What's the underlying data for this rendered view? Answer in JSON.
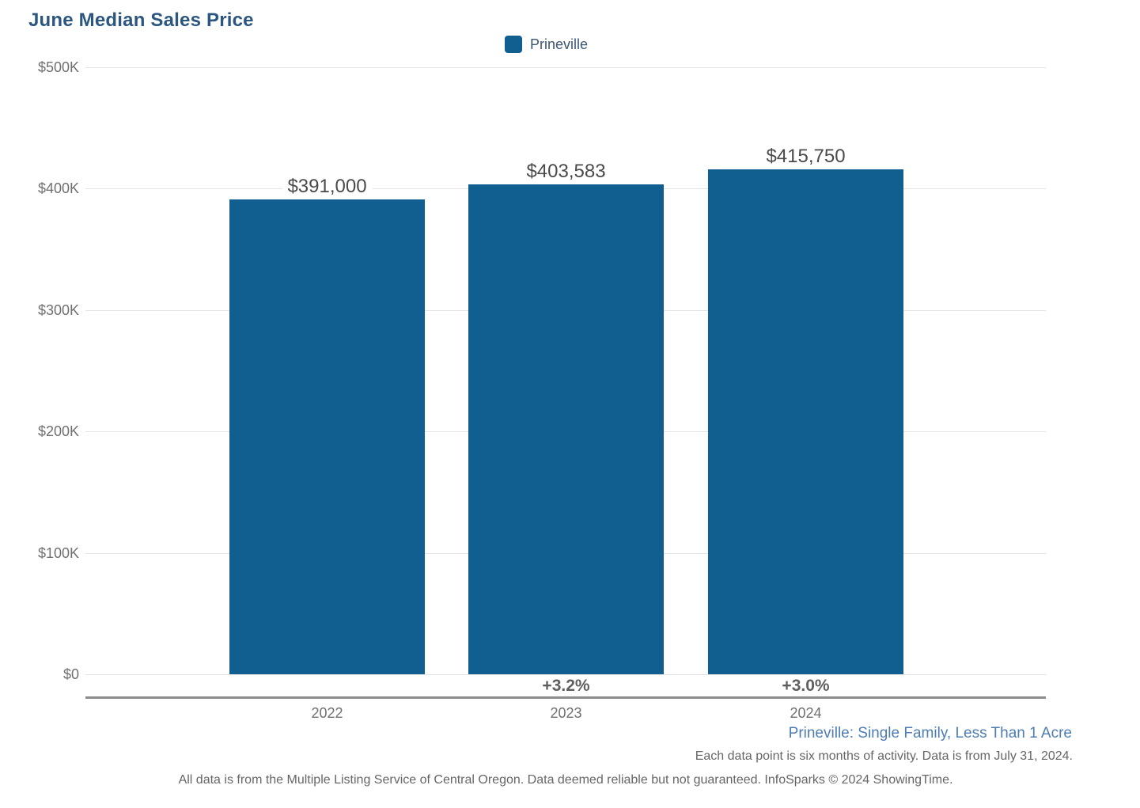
{
  "title": "June Median Sales Price",
  "legend": {
    "items": [
      {
        "label": "Prineville",
        "color": "#115F90"
      }
    ]
  },
  "chart_data": {
    "type": "bar",
    "title": "June Median Sales Price",
    "categories": [
      "2022",
      "2023",
      "2024"
    ],
    "series": [
      {
        "name": "Prineville",
        "values": [
          391000,
          403583,
          415750
        ]
      }
    ],
    "value_labels": [
      "$391,000",
      "$403,583",
      "$415,750"
    ],
    "pct_change_labels": [
      "",
      "+3.2%",
      "+3.0%"
    ],
    "y_tick_labels": [
      "$500K",
      "$400K",
      "$300K",
      "$200K",
      "$100K",
      "$0"
    ],
    "ylim": [
      0,
      500000
    ],
    "grid": true,
    "legend_position": "top-center",
    "bar_color": "#115F90"
  },
  "footer": {
    "series_note": "Prineville: Single Family, Less Than 1 Acre",
    "data_note": "Each data point is six months of activity. Data is from July 31, 2024.",
    "disclaimer": "All data is from the Multiple Listing Service of Central Oregon. Data deemed reliable but not guaranteed. InfoSparks © 2024 ShowingTime."
  },
  "colors": {
    "title": "#2B5680",
    "bar": "#115F90",
    "value_label": "#4A4A4A",
    "pct_label": "#5F5F5F",
    "tick_label": "#707070",
    "gridline": "#E3E3E3",
    "axis_line": "#8C8C8C",
    "series_note": "#4D7DB3",
    "footnote": "#666666",
    "legend_label": "#3B566F"
  }
}
